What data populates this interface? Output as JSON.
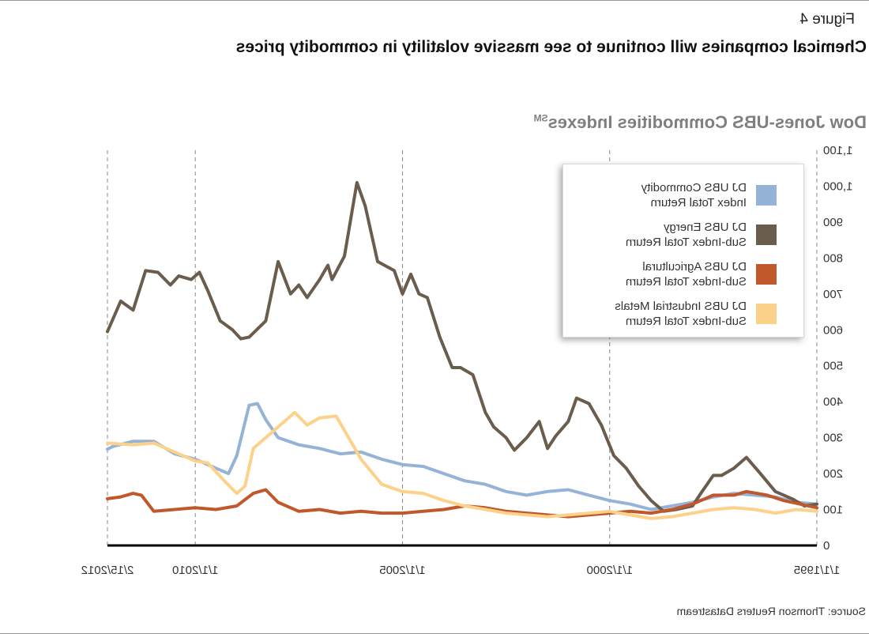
{
  "figure_label": "Figure 4",
  "headline": "Chemical companies will continue to see massive volatility in commodity prices",
  "source": "Source: Thomson Reuters Datastream",
  "chart_data": {
    "type": "line",
    "title": "Dow Jones-UBS Commodities Indexes",
    "title_superscript": "SM",
    "xlabel": "",
    "ylabel": "",
    "x_ticks": [
      "1/1/1995",
      "1/1/2000",
      "1/1/2005",
      "1/1/2010",
      "2/15/2012"
    ],
    "x_range": [
      1995.0,
      2012.12
    ],
    "y_ticks": [
      0,
      100,
      200,
      300,
      400,
      500,
      600,
      700,
      800,
      900,
      "1,000",
      "1,100"
    ],
    "ylim": [
      0,
      1100
    ],
    "grid": "vertical dashed at tick dates",
    "legend_placement": "top-left",
    "series": [
      {
        "name": "DJ UBS Commodity\nIndex Total Return",
        "color": "#95b3d7",
        "points": [
          [
            1995.0,
            115
          ],
          [
            1995.5,
            120
          ],
          [
            1996.0,
            135
          ],
          [
            1996.5,
            140
          ],
          [
            1997.0,
            145
          ],
          [
            1997.5,
            135
          ],
          [
            1998.0,
            120
          ],
          [
            1998.5,
            110
          ],
          [
            1999.0,
            100
          ],
          [
            1999.5,
            115
          ],
          [
            2000.0,
            125
          ],
          [
            2000.5,
            140
          ],
          [
            2001.0,
            155
          ],
          [
            2001.5,
            150
          ],
          [
            2002.0,
            140
          ],
          [
            2002.5,
            150
          ],
          [
            2003.0,
            170
          ],
          [
            2003.5,
            180
          ],
          [
            2004.0,
            200
          ],
          [
            2004.5,
            220
          ],
          [
            2005.0,
            225
          ],
          [
            2005.5,
            240
          ],
          [
            2006.0,
            260
          ],
          [
            2006.5,
            255
          ],
          [
            2007.0,
            270
          ],
          [
            2007.5,
            280
          ],
          [
            2008.0,
            300
          ],
          [
            2008.3,
            350
          ],
          [
            2008.5,
            395
          ],
          [
            2008.7,
            390
          ],
          [
            2009.0,
            250
          ],
          [
            2009.2,
            200
          ],
          [
            2009.5,
            215
          ],
          [
            2010.0,
            240
          ],
          [
            2010.5,
            255
          ],
          [
            2011.0,
            290
          ],
          [
            2011.5,
            290
          ],
          [
            2012.0,
            275
          ],
          [
            2012.12,
            268
          ]
        ]
      },
      {
        "name": "DJ UBS Energy\nSub-Index Total Return",
        "color": "#6a5d4d",
        "points": [
          [
            1995.0,
            115
          ],
          [
            1995.3,
            110
          ],
          [
            1995.6,
            130
          ],
          [
            1996.0,
            150
          ],
          [
            1996.4,
            205
          ],
          [
            1996.7,
            245
          ],
          [
            1997.0,
            215
          ],
          [
            1997.3,
            195
          ],
          [
            1997.5,
            195
          ],
          [
            1997.8,
            145
          ],
          [
            1998.0,
            110
          ],
          [
            1998.4,
            100
          ],
          [
            1998.7,
            95
          ],
          [
            1999.0,
            125
          ],
          [
            1999.3,
            165
          ],
          [
            1999.6,
            215
          ],
          [
            1999.9,
            250
          ],
          [
            2000.2,
            335
          ],
          [
            2000.5,
            395
          ],
          [
            2000.8,
            410
          ],
          [
            2001.0,
            345
          ],
          [
            2001.3,
            305
          ],
          [
            2001.5,
            270
          ],
          [
            2001.7,
            345
          ],
          [
            2002.0,
            300
          ],
          [
            2002.3,
            265
          ],
          [
            2002.5,
            300
          ],
          [
            2002.8,
            330
          ],
          [
            2003.0,
            370
          ],
          [
            2003.3,
            475
          ],
          [
            2003.6,
            495
          ],
          [
            2003.8,
            495
          ],
          [
            2004.1,
            580
          ],
          [
            2004.4,
            690
          ],
          [
            2004.6,
            700
          ],
          [
            2004.8,
            755
          ],
          [
            2005.0,
            700
          ],
          [
            2005.2,
            765
          ],
          [
            2005.6,
            790
          ],
          [
            2005.9,
            945
          ],
          [
            2006.1,
            1010
          ],
          [
            2006.4,
            805
          ],
          [
            2006.7,
            740
          ],
          [
            2006.8,
            780
          ],
          [
            2007.0,
            740
          ],
          [
            2007.3,
            690
          ],
          [
            2007.5,
            725
          ],
          [
            2007.7,
            700
          ],
          [
            2008.0,
            790
          ],
          [
            2008.3,
            625
          ],
          [
            2008.7,
            580
          ],
          [
            2008.9,
            575
          ],
          [
            2009.1,
            600
          ],
          [
            2009.4,
            625
          ],
          [
            2009.7,
            710
          ],
          [
            2009.9,
            760
          ],
          [
            2010.1,
            740
          ],
          [
            2010.4,
            750
          ],
          [
            2010.6,
            725
          ],
          [
            2010.9,
            760
          ],
          [
            2011.2,
            765
          ],
          [
            2011.5,
            655
          ],
          [
            2011.8,
            680
          ],
          [
            2012.12,
            595
          ]
        ]
      },
      {
        "name": "DJ UBS Agricultural\nSub-Index Total Return",
        "color": "#c0582b",
        "points": [
          [
            1995.0,
            105
          ],
          [
            1995.4,
            115
          ],
          [
            1995.8,
            125
          ],
          [
            1996.2,
            140
          ],
          [
            1996.7,
            150
          ],
          [
            1997.0,
            140
          ],
          [
            1997.5,
            140
          ],
          [
            1998.0,
            115
          ],
          [
            1998.5,
            100
          ],
          [
            1999.0,
            90
          ],
          [
            1999.5,
            95
          ],
          [
            2000.0,
            90
          ],
          [
            2000.5,
            85
          ],
          [
            2001.0,
            80
          ],
          [
            2001.5,
            85
          ],
          [
            2002.0,
            90
          ],
          [
            2002.5,
            95
          ],
          [
            2003.0,
            105
          ],
          [
            2003.5,
            110
          ],
          [
            2004.0,
            100
          ],
          [
            2004.5,
            95
          ],
          [
            2005.0,
            90
          ],
          [
            2005.5,
            90
          ],
          [
            2006.0,
            95
          ],
          [
            2006.5,
            90
          ],
          [
            2007.0,
            100
          ],
          [
            2007.5,
            95
          ],
          [
            2008.0,
            120
          ],
          [
            2008.3,
            155
          ],
          [
            2008.6,
            145
          ],
          [
            2009.0,
            110
          ],
          [
            2009.5,
            100
          ],
          [
            2010.0,
            105
          ],
          [
            2010.5,
            100
          ],
          [
            2011.0,
            95
          ],
          [
            2011.3,
            140
          ],
          [
            2011.5,
            145
          ],
          [
            2011.8,
            135
          ],
          [
            2012.12,
            130
          ]
        ]
      },
      {
        "name": "DJ UBS Industrial Metals\nSub-Index Total Return",
        "color": "#fcd28b",
        "points": [
          [
            1995.0,
            95
          ],
          [
            1995.5,
            100
          ],
          [
            1996.0,
            90
          ],
          [
            1996.5,
            100
          ],
          [
            1997.0,
            105
          ],
          [
            1997.5,
            100
          ],
          [
            1998.0,
            90
          ],
          [
            1998.5,
            80
          ],
          [
            1999.0,
            75
          ],
          [
            1999.5,
            85
          ],
          [
            2000.0,
            95
          ],
          [
            2000.5,
            90
          ],
          [
            2001.0,
            85
          ],
          [
            2001.5,
            80
          ],
          [
            2002.0,
            85
          ],
          [
            2002.5,
            90
          ],
          [
            2003.0,
            100
          ],
          [
            2003.5,
            110
          ],
          [
            2004.0,
            125
          ],
          [
            2004.5,
            145
          ],
          [
            2005.0,
            150
          ],
          [
            2005.5,
            170
          ],
          [
            2006.0,
            240
          ],
          [
            2006.3,
            300
          ],
          [
            2006.6,
            360
          ],
          [
            2007.0,
            355
          ],
          [
            2007.3,
            335
          ],
          [
            2007.6,
            370
          ],
          [
            2008.0,
            330
          ],
          [
            2008.3,
            300
          ],
          [
            2008.6,
            270
          ],
          [
            2008.8,
            165
          ],
          [
            2009.0,
            145
          ],
          [
            2009.3,
            180
          ],
          [
            2009.7,
            230
          ],
          [
            2010.0,
            235
          ],
          [
            2010.5,
            260
          ],
          [
            2011.0,
            285
          ],
          [
            2011.5,
            280
          ],
          [
            2012.12,
            285
          ]
        ]
      }
    ]
  }
}
